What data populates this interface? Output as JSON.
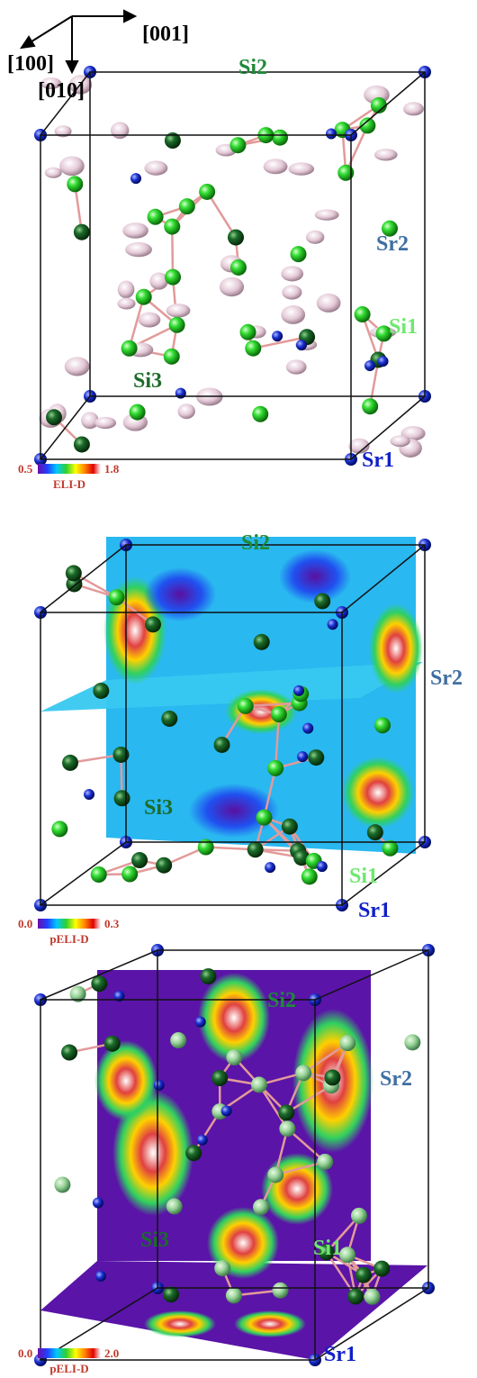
{
  "axes": {
    "a": "[001]",
    "b": "[100]",
    "c": "[010]"
  },
  "panels": [
    {
      "labels": {
        "si2": "Si2",
        "sr2": "Sr2",
        "si1": "Si1",
        "si3": "Si3",
        "sr1": "Sr1"
      },
      "colorbar": {
        "min": "0.5",
        "max": "1.8",
        "label": "ELI-D"
      }
    },
    {
      "labels": {
        "si2": "Si2",
        "sr2": "Sr2",
        "si1": "Si1",
        "si3": "Si3",
        "sr1": "Sr1"
      },
      "colorbar": {
        "min": "0.0",
        "max": "0.3",
        "label": "pELI-D"
      }
    },
    {
      "labels": {
        "si2": "Si2",
        "sr2": "Sr2",
        "si1": "Si1",
        "si3": "Si3",
        "sr1": "Sr1"
      },
      "colorbar": {
        "min": "0.0",
        "max": "2.0",
        "label": "pELI-D"
      }
    }
  ]
}
